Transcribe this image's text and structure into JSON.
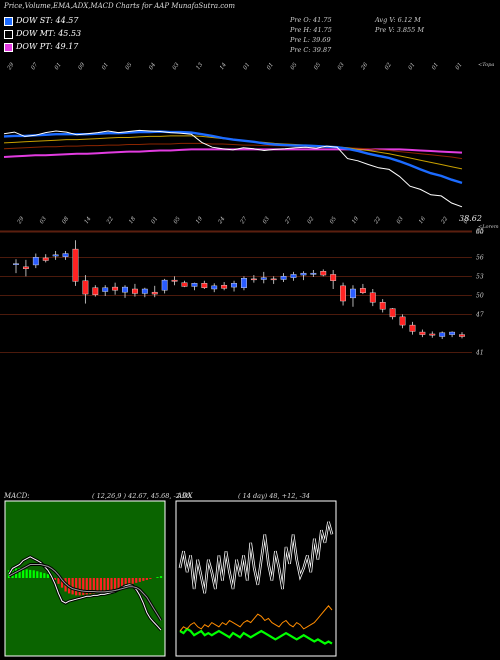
{
  "header": {
    "title": "Price,Volume,EMA,ADX,MACD Charts for AAP MunafaSutra.com",
    "legend": [
      {
        "label": "DOW ST: 44.57",
        "color": "#1c6bff"
      },
      {
        "label": "DOW MT: 45.53",
        "color": "#000000"
      },
      {
        "label": "DOW PT: 49.17",
        "color": "#e23ce0"
      }
    ],
    "stats": {
      "open": "Pre  O: 41.75",
      "high": "Pre  H: 41.75",
      "low": "Pre  L: 39.69",
      "close": "Pre  C: 39.87",
      "avg_volume": "Avg V: 6.12  M",
      "prev_volume": "Pre  V: 3.855  M"
    }
  },
  "chart_data": [
    {
      "type": "line",
      "name": "price-ema-panel",
      "ylabel_right": "<Topa",
      "last_price_label": "38.62",
      "top_date_ticks": [
        "29",
        "07",
        "01",
        "09",
        "01",
        "05",
        "04",
        "03",
        "13",
        "14",
        "01",
        "01",
        "05",
        "05",
        "03",
        "26",
        "02",
        "01",
        "01",
        "01"
      ],
      "series": [
        {
          "name": "",
          "color": "#ffffff",
          "values": [
            52.1,
            52.4,
            51.6,
            51.8,
            52.3,
            52.6,
            52.4,
            51.9,
            52.1,
            52.3,
            52.6,
            52.3,
            52.5,
            52.7,
            52.6,
            52.5,
            52.3,
            52.2,
            52.0,
            50.5,
            49.6,
            49.3,
            49.1,
            49.5,
            49.3,
            49.0,
            49.2,
            49.3,
            49.5,
            49.6,
            49.4,
            49.8,
            49.6,
            47.5,
            47.1,
            46.4,
            45.8,
            45.5,
            44.2,
            42.4,
            41.8,
            40.8,
            40.6,
            39.3,
            38.6
          ]
        },
        {
          "name": "",
          "color": "#1c6bff",
          "values": [
            51.6,
            51.7,
            51.7,
            51.8,
            51.9,
            52.0,
            52.0,
            52.0,
            52.0,
            52.1,
            52.2,
            52.2,
            52.3,
            52.4,
            52.4,
            52.5,
            52.4,
            52.4,
            52.3,
            52.0,
            51.7,
            51.3,
            51.0,
            50.8,
            50.6,
            50.3,
            50.1,
            50.0,
            49.9,
            49.9,
            49.8,
            49.7,
            49.6,
            49.3,
            48.9,
            48.4,
            48.0,
            47.6,
            47.0,
            46.3,
            45.5,
            44.8,
            44.3,
            43.6,
            43.0
          ]
        },
        {
          "name": "",
          "color": "#c8a000",
          "values": [
            50.4,
            50.5,
            50.6,
            50.7,
            50.8,
            50.9,
            51.0,
            51.0,
            51.1,
            51.2,
            51.3,
            51.4,
            51.4,
            51.5,
            51.6,
            51.6,
            51.7,
            51.7,
            51.7,
            51.6,
            51.4,
            51.2,
            51.0,
            50.8,
            50.6,
            50.5,
            50.3,
            50.2,
            50.1,
            50.0,
            49.9,
            49.8,
            49.7,
            49.5,
            49.2,
            49.0,
            48.7,
            48.4,
            48.0,
            47.6,
            47.2,
            46.8,
            46.4,
            46.0,
            45.6
          ]
        },
        {
          "name": "",
          "color": "#8b2500",
          "values": [
            49.3,
            49.4,
            49.5,
            49.6,
            49.7,
            49.7,
            49.8,
            49.8,
            49.9,
            49.9,
            50.0,
            50.0,
            50.1,
            50.1,
            50.2,
            50.2,
            50.2,
            50.3,
            50.3,
            50.3,
            50.2,
            50.2,
            50.1,
            50.0,
            50.0,
            49.9,
            49.9,
            49.8,
            49.8,
            49.7,
            49.7,
            49.6,
            49.6,
            49.5,
            49.4,
            49.3,
            49.1,
            49.0,
            48.8,
            48.6,
            48.4,
            48.2,
            48.0,
            47.8,
            47.5
          ]
        },
        {
          "name": "",
          "color": "#e23ce0",
          "values": [
            47.8,
            47.9,
            48.0,
            48.1,
            48.1,
            48.2,
            48.3,
            48.4,
            48.4,
            48.5,
            48.6,
            48.7,
            48.8,
            48.8,
            48.9,
            49.0,
            49.0,
            49.1,
            49.2,
            49.2,
            49.2,
            49.2,
            49.2,
            49.2,
            49.2,
            49.2,
            49.2,
            49.2,
            49.2,
            49.2,
            49.2,
            49.2,
            49.2,
            49.2,
            49.2,
            49.2,
            49.2,
            49.2,
            49.2,
            49.1,
            49.0,
            48.9,
            48.8,
            48.7,
            48.6
          ]
        }
      ]
    },
    {
      "type": "bar",
      "name": "candlestick-panel",
      "title": "",
      "y_ticks": [
        65,
        60,
        56,
        53,
        50,
        47,
        41
      ],
      "top_right_label": "<Lorem",
      "top_date_ticks": [
        "29",
        "03",
        "08",
        "14",
        "22",
        "18",
        "01",
        "05",
        "19",
        "24",
        "27",
        "03",
        "27",
        "02",
        "05",
        "19",
        "22",
        "03",
        "16",
        "22",
        "01"
      ],
      "candles": [
        {
          "o": 55.0,
          "h": 55.7,
          "l": 53.5,
          "c": 55.0
        },
        {
          "o": 54.5,
          "h": 55.6,
          "l": 53.0,
          "c": 54.2
        },
        {
          "o": 54.8,
          "h": 56.6,
          "l": 54.3,
          "c": 56.0
        },
        {
          "o": 55.9,
          "h": 56.5,
          "l": 55.2,
          "c": 55.5
        },
        {
          "o": 56.2,
          "h": 57.0,
          "l": 55.6,
          "c": 56.4
        },
        {
          "o": 56.1,
          "h": 57.0,
          "l": 55.6,
          "c": 56.6
        },
        {
          "o": 57.3,
          "h": 58.7,
          "l": 51.5,
          "c": 52.2
        },
        {
          "o": 52.3,
          "h": 53.2,
          "l": 48.7,
          "c": 50.2
        },
        {
          "o": 51.2,
          "h": 51.6,
          "l": 49.8,
          "c": 50.1
        },
        {
          "o": 50.6,
          "h": 51.6,
          "l": 49.9,
          "c": 51.2
        },
        {
          "o": 51.3,
          "h": 52.0,
          "l": 50.1,
          "c": 50.8
        },
        {
          "o": 50.5,
          "h": 51.6,
          "l": 49.6,
          "c": 51.3
        },
        {
          "o": 51.0,
          "h": 51.8,
          "l": 49.8,
          "c": 50.3
        },
        {
          "o": 50.3,
          "h": 51.2,
          "l": 49.7,
          "c": 51.0
        },
        {
          "o": 50.5,
          "h": 51.5,
          "l": 49.7,
          "c": 50.2
        },
        {
          "o": 50.8,
          "h": 52.6,
          "l": 50.3,
          "c": 52.4
        },
        {
          "o": 52.4,
          "h": 53.0,
          "l": 51.6,
          "c": 52.2
        },
        {
          "o": 52.0,
          "h": 52.3,
          "l": 51.3,
          "c": 51.4
        },
        {
          "o": 51.4,
          "h": 52.0,
          "l": 50.8,
          "c": 51.9
        },
        {
          "o": 51.9,
          "h": 52.3,
          "l": 51.0,
          "c": 51.2
        },
        {
          "o": 51.0,
          "h": 51.9,
          "l": 50.5,
          "c": 51.5
        },
        {
          "o": 51.6,
          "h": 52.1,
          "l": 50.8,
          "c": 51.1
        },
        {
          "o": 51.3,
          "h": 52.3,
          "l": 50.6,
          "c": 51.9
        },
        {
          "o": 51.2,
          "h": 53.0,
          "l": 50.8,
          "c": 52.7
        },
        {
          "o": 52.6,
          "h": 53.2,
          "l": 52.0,
          "c": 52.5
        },
        {
          "o": 52.5,
          "h": 53.7,
          "l": 51.9,
          "c": 52.8
        },
        {
          "o": 52.6,
          "h": 53.0,
          "l": 51.8,
          "c": 52.5
        },
        {
          "o": 52.5,
          "h": 53.5,
          "l": 52.1,
          "c": 53.0
        },
        {
          "o": 52.8,
          "h": 53.7,
          "l": 52.3,
          "c": 53.3
        },
        {
          "o": 53.2,
          "h": 53.8,
          "l": 52.4,
          "c": 53.5
        },
        {
          "o": 53.3,
          "h": 54.0,
          "l": 52.9,
          "c": 53.5
        },
        {
          "o": 53.8,
          "h": 54.1,
          "l": 53.0,
          "c": 53.2
        },
        {
          "o": 53.3,
          "h": 54.0,
          "l": 51.0,
          "c": 52.3
        },
        {
          "o": 51.5,
          "h": 52.0,
          "l": 48.4,
          "c": 49.1
        },
        {
          "o": 49.6,
          "h": 51.6,
          "l": 48.2,
          "c": 51.0
        },
        {
          "o": 51.1,
          "h": 51.8,
          "l": 50.2,
          "c": 50.4
        },
        {
          "o": 50.4,
          "h": 51.0,
          "l": 48.3,
          "c": 48.9
        },
        {
          "o": 48.9,
          "h": 49.4,
          "l": 47.3,
          "c": 47.8
        },
        {
          "o": 47.9,
          "h": 48.0,
          "l": 46.2,
          "c": 46.6
        },
        {
          "o": 46.6,
          "h": 47.0,
          "l": 44.8,
          "c": 45.3
        },
        {
          "o": 45.3,
          "h": 45.8,
          "l": 43.8,
          "c": 44.3
        },
        {
          "o": 44.2,
          "h": 44.6,
          "l": 43.4,
          "c": 43.8
        },
        {
          "o": 43.9,
          "h": 44.3,
          "l": 43.3,
          "c": 43.7
        },
        {
          "o": 43.5,
          "h": 44.3,
          "l": 43.1,
          "c": 44.1
        },
        {
          "o": 43.8,
          "h": 44.3,
          "l": 43.4,
          "c": 44.2
        },
        {
          "o": 43.8,
          "h": 44.2,
          "l": 43.2,
          "c": 43.5
        }
      ]
    },
    {
      "type": "bar",
      "name": "macd-panel",
      "title": "MACD:",
      "params": "( 12,26,9 ) 42.67,  45.68,  -2.96",
      "histogram": [
        0.4,
        0.45,
        0.5,
        0.52,
        0.5,
        0.45,
        0.42,
        0.4,
        0.35,
        0.3,
        0.25,
        0.2,
        0.15,
        -0.1,
        -0.3,
        -0.5,
        -0.7,
        -0.8,
        -0.85,
        -0.9,
        -0.9,
        -0.88,
        -0.85,
        -0.82,
        -0.8,
        -0.78,
        -0.75,
        -0.72,
        -0.7,
        -0.68,
        -0.65,
        -0.6,
        -0.55,
        -0.5,
        -0.4,
        -0.3,
        -0.25,
        -0.2,
        -0.15,
        -0.1,
        -0.05,
        0.0,
        0.05,
        0.1
      ],
      "series": [
        {
          "name": "",
          "color": "#ffffff",
          "values": [
            0.2,
            0.5,
            0.6,
            0.7,
            0.9,
            1.0,
            1.1,
            1.0,
            0.9,
            0.8,
            0.6,
            0.4,
            0.1,
            -0.3,
            -0.8,
            -1.2,
            -1.3,
            -1.2,
            -1.15,
            -1.1,
            -1.05,
            -1.0,
            -0.95,
            -0.95,
            -0.9,
            -0.9,
            -0.85,
            -0.85,
            -0.8,
            -0.75,
            -0.7,
            -0.6,
            -0.5,
            -0.4,
            -0.35,
            -0.4,
            -0.6,
            -0.9,
            -1.3,
            -1.8,
            -2.1,
            -2.3,
            -2.5,
            -2.7
          ]
        },
        {
          "name": "",
          "color": "#9a9a9a",
          "values": [
            0.1,
            0.2,
            0.3,
            0.4,
            0.5,
            0.6,
            0.7,
            0.7,
            0.7,
            0.7,
            0.65,
            0.6,
            0.5,
            0.35,
            0.15,
            -0.1,
            -0.3,
            -0.45,
            -0.55,
            -0.6,
            -0.65,
            -0.68,
            -0.7,
            -0.7,
            -0.7,
            -0.72,
            -0.72,
            -0.72,
            -0.7,
            -0.68,
            -0.65,
            -0.6,
            -0.55,
            -0.5,
            -0.45,
            -0.45,
            -0.5,
            -0.6,
            -0.8,
            -1.0,
            -1.3,
            -1.6,
            -1.9,
            -2.2
          ]
        }
      ]
    },
    {
      "type": "line",
      "name": "adx-panel",
      "title": "ADX",
      "params": "( 14  day) 48,  +12,  -34",
      "series": [
        {
          "name": "",
          "color": "#ffffff",
          "values": [
            40,
            48,
            38,
            46,
            30,
            44,
            36,
            28,
            44,
            38,
            30,
            46,
            34,
            48,
            38,
            30,
            44,
            36,
            46,
            34,
            52,
            40,
            32,
            44,
            56,
            42,
            34,
            48,
            40,
            30,
            50,
            42,
            56,
            44,
            36,
            40,
            46,
            38,
            54,
            44,
            58,
            52,
            62,
            56
          ]
        },
        {
          "name": "",
          "color": "#00ff00",
          "values": [
            10,
            9,
            11,
            10,
            8,
            9,
            10,
            8,
            9,
            8,
            9,
            10,
            9,
            8,
            7,
            9,
            8,
            7,
            9,
            8,
            7,
            8,
            9,
            10,
            9,
            8,
            7,
            6,
            7,
            8,
            9,
            8,
            7,
            6,
            7,
            8,
            7,
            6,
            5,
            6,
            5,
            4,
            5,
            4
          ]
        },
        {
          "name": "",
          "color": "#ff8c00",
          "values": [
            10,
            12,
            11,
            13,
            14,
            12,
            11,
            13,
            12,
            14,
            13,
            12,
            14,
            13,
            15,
            14,
            13,
            12,
            14,
            15,
            14,
            16,
            18,
            17,
            15,
            16,
            14,
            13,
            12,
            14,
            15,
            13,
            12,
            14,
            13,
            11,
            12,
            13,
            14,
            16,
            18,
            20,
            22,
            20
          ]
        }
      ]
    }
  ]
}
